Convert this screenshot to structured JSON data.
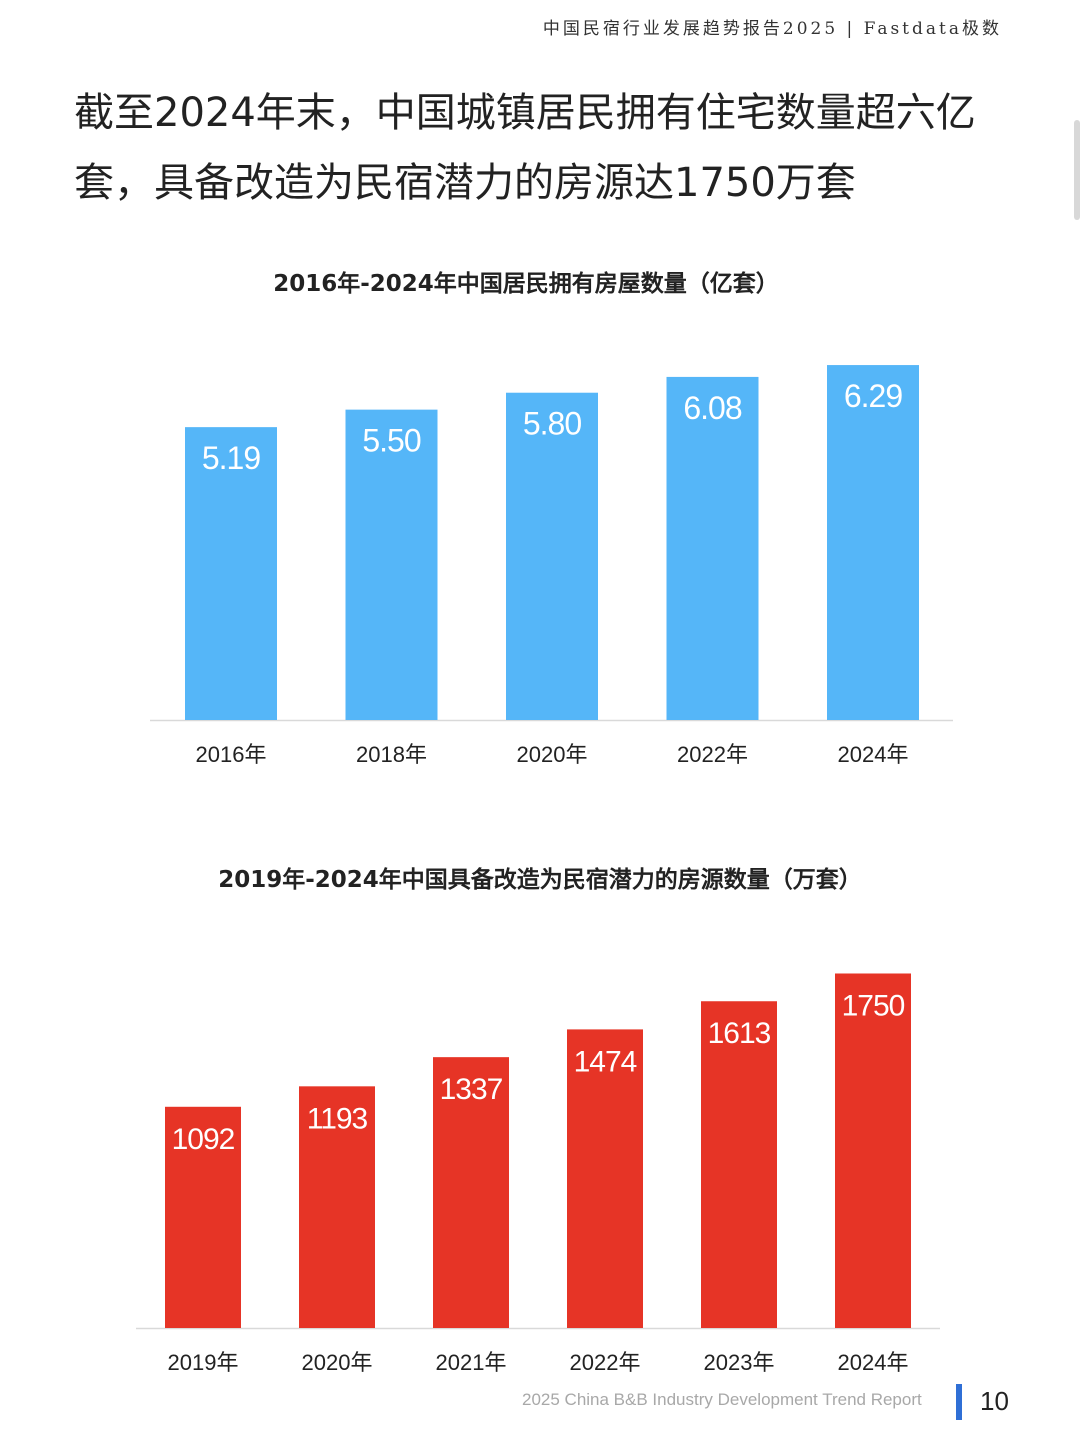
{
  "header": "中国民宿行业发展趋势报告2025 | Fastdata极数",
  "headline": "截至2024年末，中国城镇居民拥有住宅数量超六亿套，具备改造为民宿潜力的房源达1750万套",
  "footer": {
    "report_name": "2025 China B&B Industry Development Trend Report",
    "page": "10"
  },
  "chart_data": [
    {
      "type": "bar",
      "title": "2016年-2024年中国居民拥有房屋数量（亿套）",
      "categories": [
        "2016年",
        "2018年",
        "2020年",
        "2022年",
        "2024年"
      ],
      "values": [
        5.19,
        5.5,
        5.8,
        6.08,
        6.29
      ],
      "value_labels": [
        "5.19",
        "5.50",
        "5.80",
        "6.08",
        "6.29"
      ],
      "color": "#55b6f8",
      "ylim": [
        0,
        7
      ],
      "grid": false,
      "legend": "none"
    },
    {
      "type": "bar",
      "title": "2019年-2024年中国具备改造为民宿潜力的房源数量（万套）",
      "categories": [
        "2019年",
        "2020年",
        "2021年",
        "2022年",
        "2023年",
        "2024年"
      ],
      "values": [
        1092,
        1193,
        1337,
        1474,
        1613,
        1750
      ],
      "value_labels": [
        "1092",
        "1193",
        "1337",
        "1474",
        "1613",
        "1750"
      ],
      "color": "#e63426",
      "ylim": [
        0,
        1940
      ],
      "grid": false,
      "legend": "none"
    }
  ]
}
